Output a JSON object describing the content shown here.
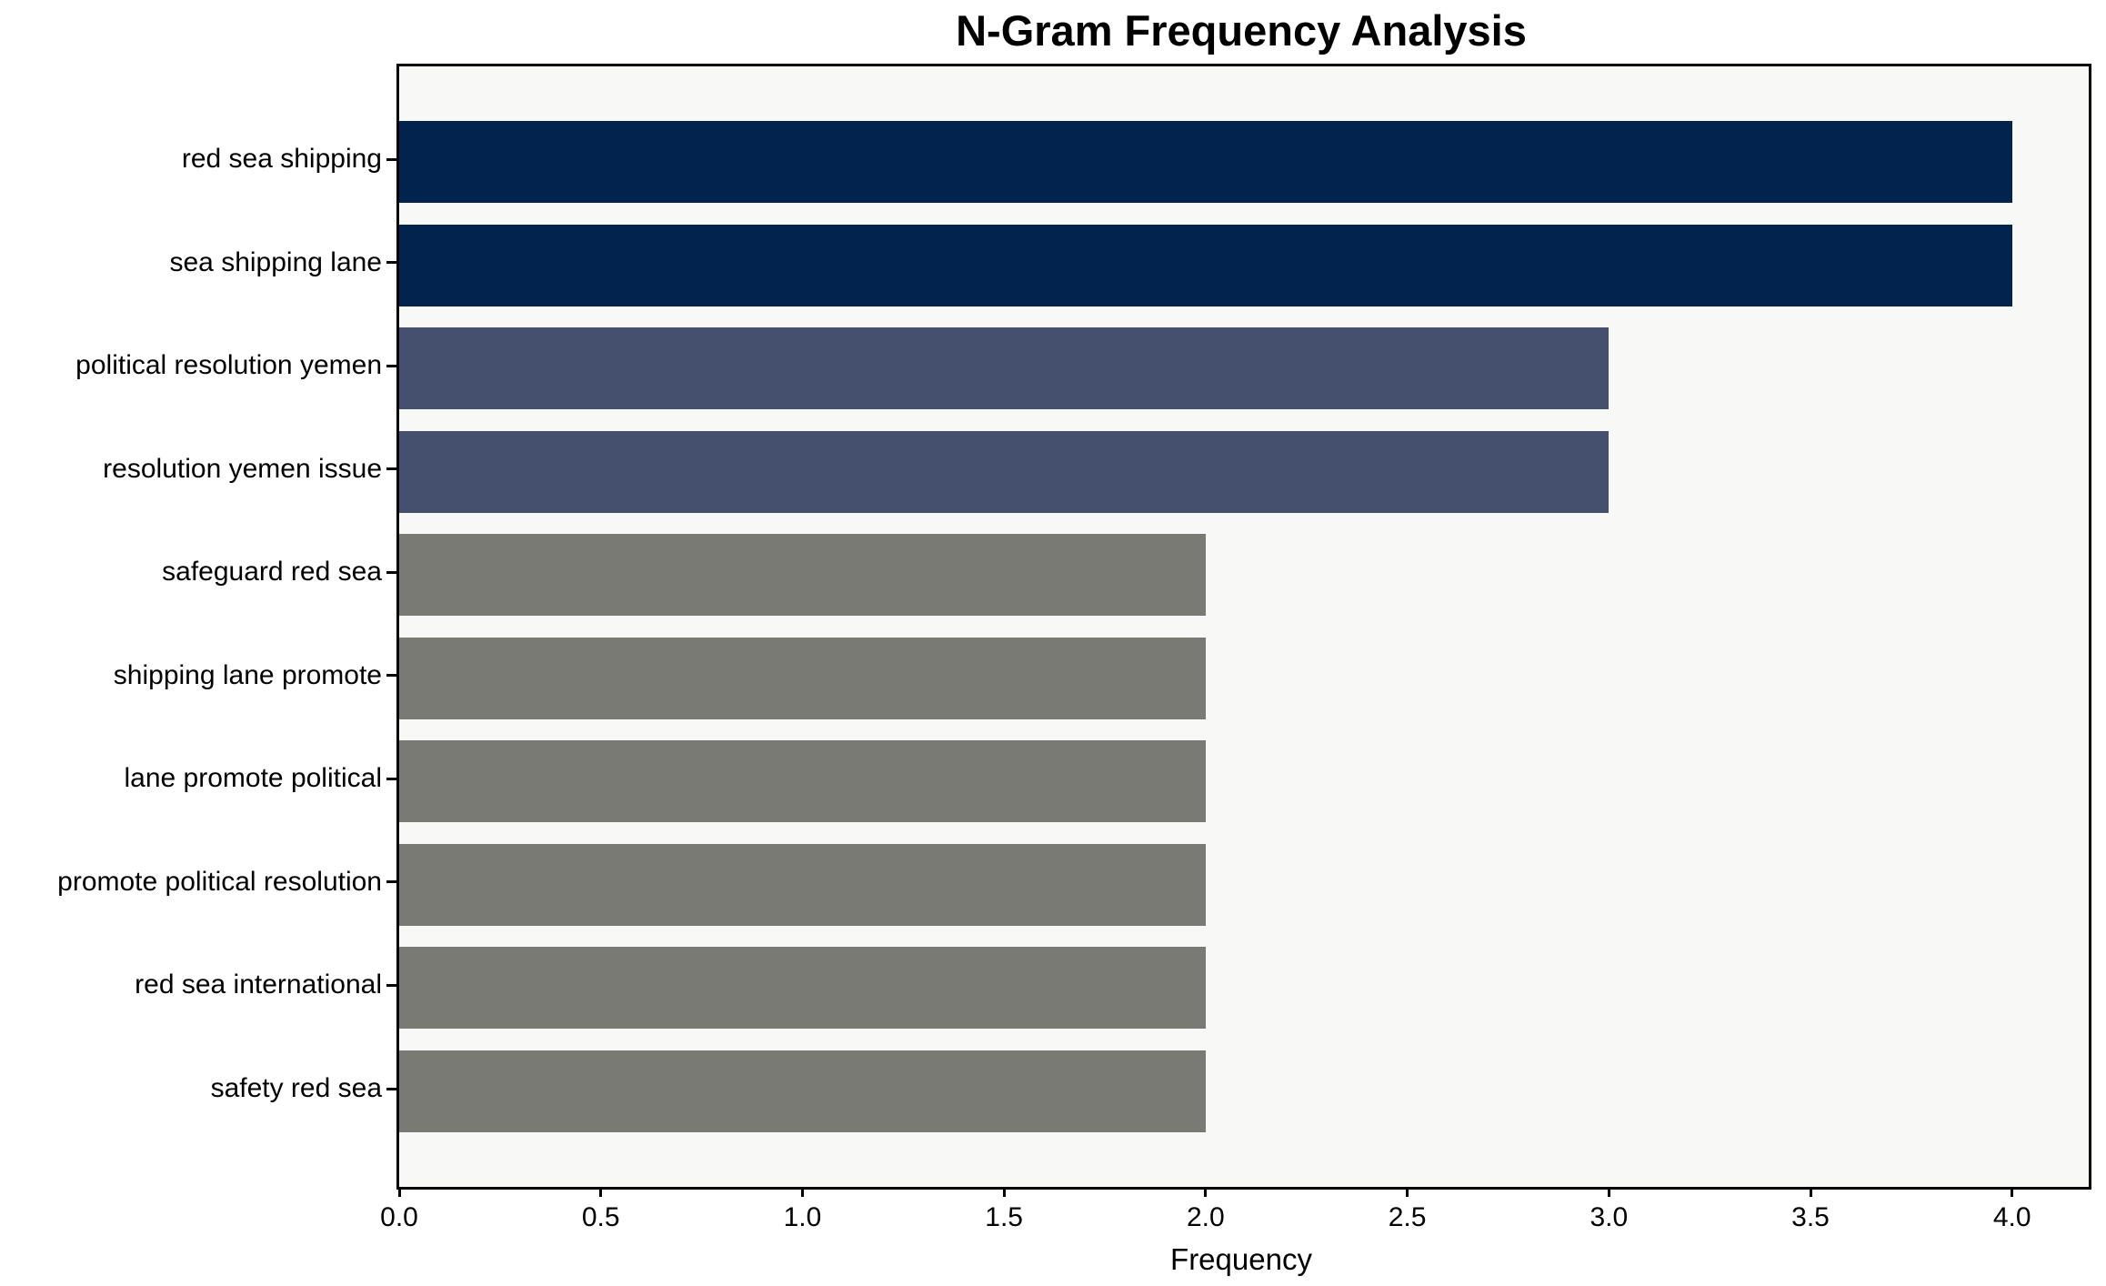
{
  "chart_data": {
    "type": "bar",
    "orientation": "horizontal",
    "title": "N-Gram Frequency Analysis",
    "xlabel": "Frequency",
    "ylabel": "",
    "categories": [
      "red sea shipping",
      "sea shipping lane",
      "political resolution yemen",
      "resolution yemen issue",
      "safeguard red sea",
      "shipping lane promote",
      "lane promote political",
      "promote political resolution",
      "red sea international",
      "safety red sea"
    ],
    "values": [
      4,
      4,
      3,
      3,
      2,
      2,
      2,
      2,
      2,
      2
    ],
    "xlim": [
      0,
      4.19
    ],
    "x_ticks": [
      0.0,
      0.5,
      1.0,
      1.5,
      2.0,
      2.5,
      3.0,
      3.5,
      4.0
    ],
    "x_tick_labels": [
      "0.0",
      "0.5",
      "1.0",
      "1.5",
      "2.0",
      "2.5",
      "3.0",
      "3.5",
      "4.0"
    ],
    "grid": false,
    "legend": false,
    "colors": {
      "bars": [
        "#02234D",
        "#02234D",
        "#44506E",
        "#44506E",
        "#7A7A75",
        "#7A7A75",
        "#7A7A75",
        "#7A7A75",
        "#7A7A75",
        "#7A7A75"
      ],
      "plot_background": "#F8F8F7",
      "figure_background": "#FFFFFF",
      "text": "#000000",
      "spine": "#000000"
    }
  }
}
